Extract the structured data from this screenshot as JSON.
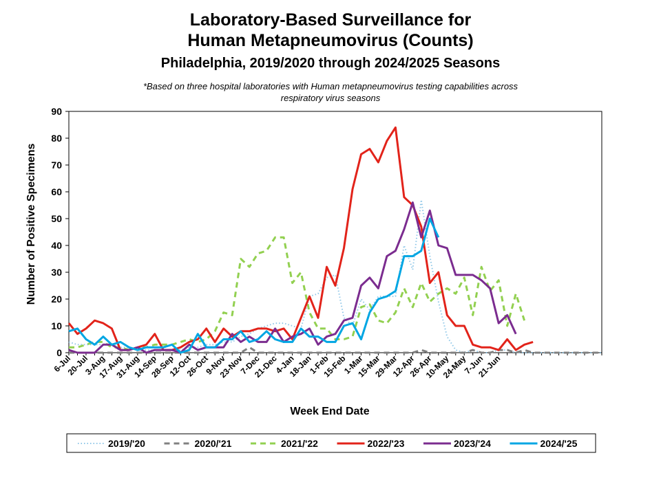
{
  "header": {
    "title_line1": "Laboratory-Based Surveillance for",
    "title_line2": "Human Metapneumovirus (Counts)",
    "subtitle": "Philadelphia, 2019/2020 through 2024/2025 Seasons",
    "note_line1": "*Based on three hospital laboratories with Human metapneumovirus testing capabilities across",
    "note_line2": "respiratory virus seasons"
  },
  "chart_data": {
    "type": "line",
    "xlabel": "Week End Date",
    "ylabel": "Number of Positive Specimens",
    "ylim": [
      0,
      90
    ],
    "yticks": [
      0,
      10,
      20,
      30,
      40,
      50,
      60,
      70,
      80,
      90
    ],
    "grid": false,
    "legend_position": "bottom",
    "x_tick_labels": [
      "6-Jul",
      "20-Jul",
      "3-Aug",
      "17-Aug",
      "31-Aug",
      "14-Sep",
      "28-Sep",
      "12-Oct",
      "26-Oct",
      "9-Nov",
      "23-Nov",
      "7-Dec",
      "21-Dec",
      "4-Jan",
      "18-Jan",
      "1-Feb",
      "15-Feb",
      "1-Mar",
      "15-Mar",
      "29-Mar",
      "12-Apr",
      "26-Apr",
      "10-May",
      "24-May",
      "7-Jun",
      "21-Jun"
    ],
    "series": [
      {
        "name": "2019/'20",
        "color": "#8fc7e8",
        "dash": "dot",
        "values": [
          4,
          3,
          3,
          3,
          3,
          3,
          2,
          2,
          1,
          1,
          1,
          1,
          1,
          1,
          2,
          2,
          3,
          3,
          4,
          4,
          6,
          7,
          9,
          10,
          11,
          11,
          10,
          9,
          21,
          22,
          28,
          29,
          13,
          10,
          20,
          16,
          21,
          21,
          21,
          40,
          31,
          57,
          36,
          19,
          6,
          1,
          0,
          1,
          0,
          0,
          1,
          1,
          0,
          0,
          0,
          0,
          0,
          0,
          0,
          0,
          0,
          0,
          0
        ]
      },
      {
        "name": "2020/'21",
        "color": "#808080",
        "dash": "dash",
        "values": [
          0,
          0,
          0,
          0,
          0,
          0,
          0,
          0,
          0,
          0,
          0,
          0,
          0,
          0,
          0,
          0,
          0,
          0,
          0,
          0,
          0,
          2,
          0,
          0,
          0,
          0,
          0,
          0,
          0,
          0,
          0,
          0,
          0,
          0,
          0,
          0,
          0,
          0,
          0,
          0,
          0,
          1,
          0,
          0,
          0,
          0,
          0,
          1,
          0,
          0,
          1,
          1,
          0,
          1,
          0,
          0,
          0,
          0,
          0,
          0,
          0,
          0,
          0
        ]
      },
      {
        "name": "2021/'22",
        "color": "#92d050",
        "dash": "dash",
        "values": [
          2,
          2,
          3,
          4,
          4,
          2,
          2,
          1,
          2,
          2,
          3,
          3,
          3,
          4,
          5,
          4,
          5,
          8,
          15,
          14,
          35,
          32,
          37,
          38,
          43,
          43,
          26,
          30,
          15,
          9,
          9,
          5,
          5,
          6,
          17,
          18,
          12,
          11,
          15,
          24,
          17,
          26,
          19,
          22,
          24,
          22,
          28,
          14,
          32,
          23,
          27,
          10,
          22,
          12
        ]
      },
      {
        "name": "2022/'23",
        "color": "#e2231a",
        "dash": "solid",
        "values": [
          11,
          7,
          9,
          12,
          11,
          9,
          1,
          1,
          2,
          3,
          7,
          1,
          1,
          2,
          4,
          5,
          9,
          4,
          9,
          6,
          8,
          8,
          9,
          9,
          8,
          9,
          5,
          13,
          21,
          13,
          32,
          25,
          39,
          61,
          74,
          76,
          71,
          79,
          84,
          58,
          55,
          47,
          26,
          30,
          14,
          10,
          10,
          3,
          2,
          2,
          1,
          5,
          1,
          3,
          4
        ]
      },
      {
        "name": "2023/'24",
        "color": "#7b2c8f",
        "dash": "solid",
        "values": [
          1,
          0,
          0,
          0,
          3,
          3,
          1,
          1,
          2,
          0,
          1,
          1,
          1,
          0,
          3,
          1,
          2,
          2,
          2,
          7,
          4,
          6,
          4,
          4,
          9,
          4,
          6,
          7,
          9,
          3,
          6,
          7,
          12,
          13,
          25,
          28,
          24,
          36,
          38,
          46,
          56,
          43,
          53,
          40,
          39,
          29,
          29,
          29,
          27,
          24,
          11,
          14,
          7
        ]
      },
      {
        "name": "2024/'25",
        "color": "#00a6e3",
        "dash": "solid",
        "values": [
          8,
          9,
          5,
          3,
          6,
          3,
          4,
          2,
          1,
          2,
          2,
          2,
          3,
          0,
          1,
          7,
          2,
          2,
          5,
          5,
          8,
          4,
          5,
          8,
          5,
          4,
          4,
          9,
          6,
          6,
          4,
          4,
          10,
          11,
          5,
          15,
          20,
          21,
          23,
          36,
          36,
          38,
          50,
          43
        ]
      }
    ]
  }
}
